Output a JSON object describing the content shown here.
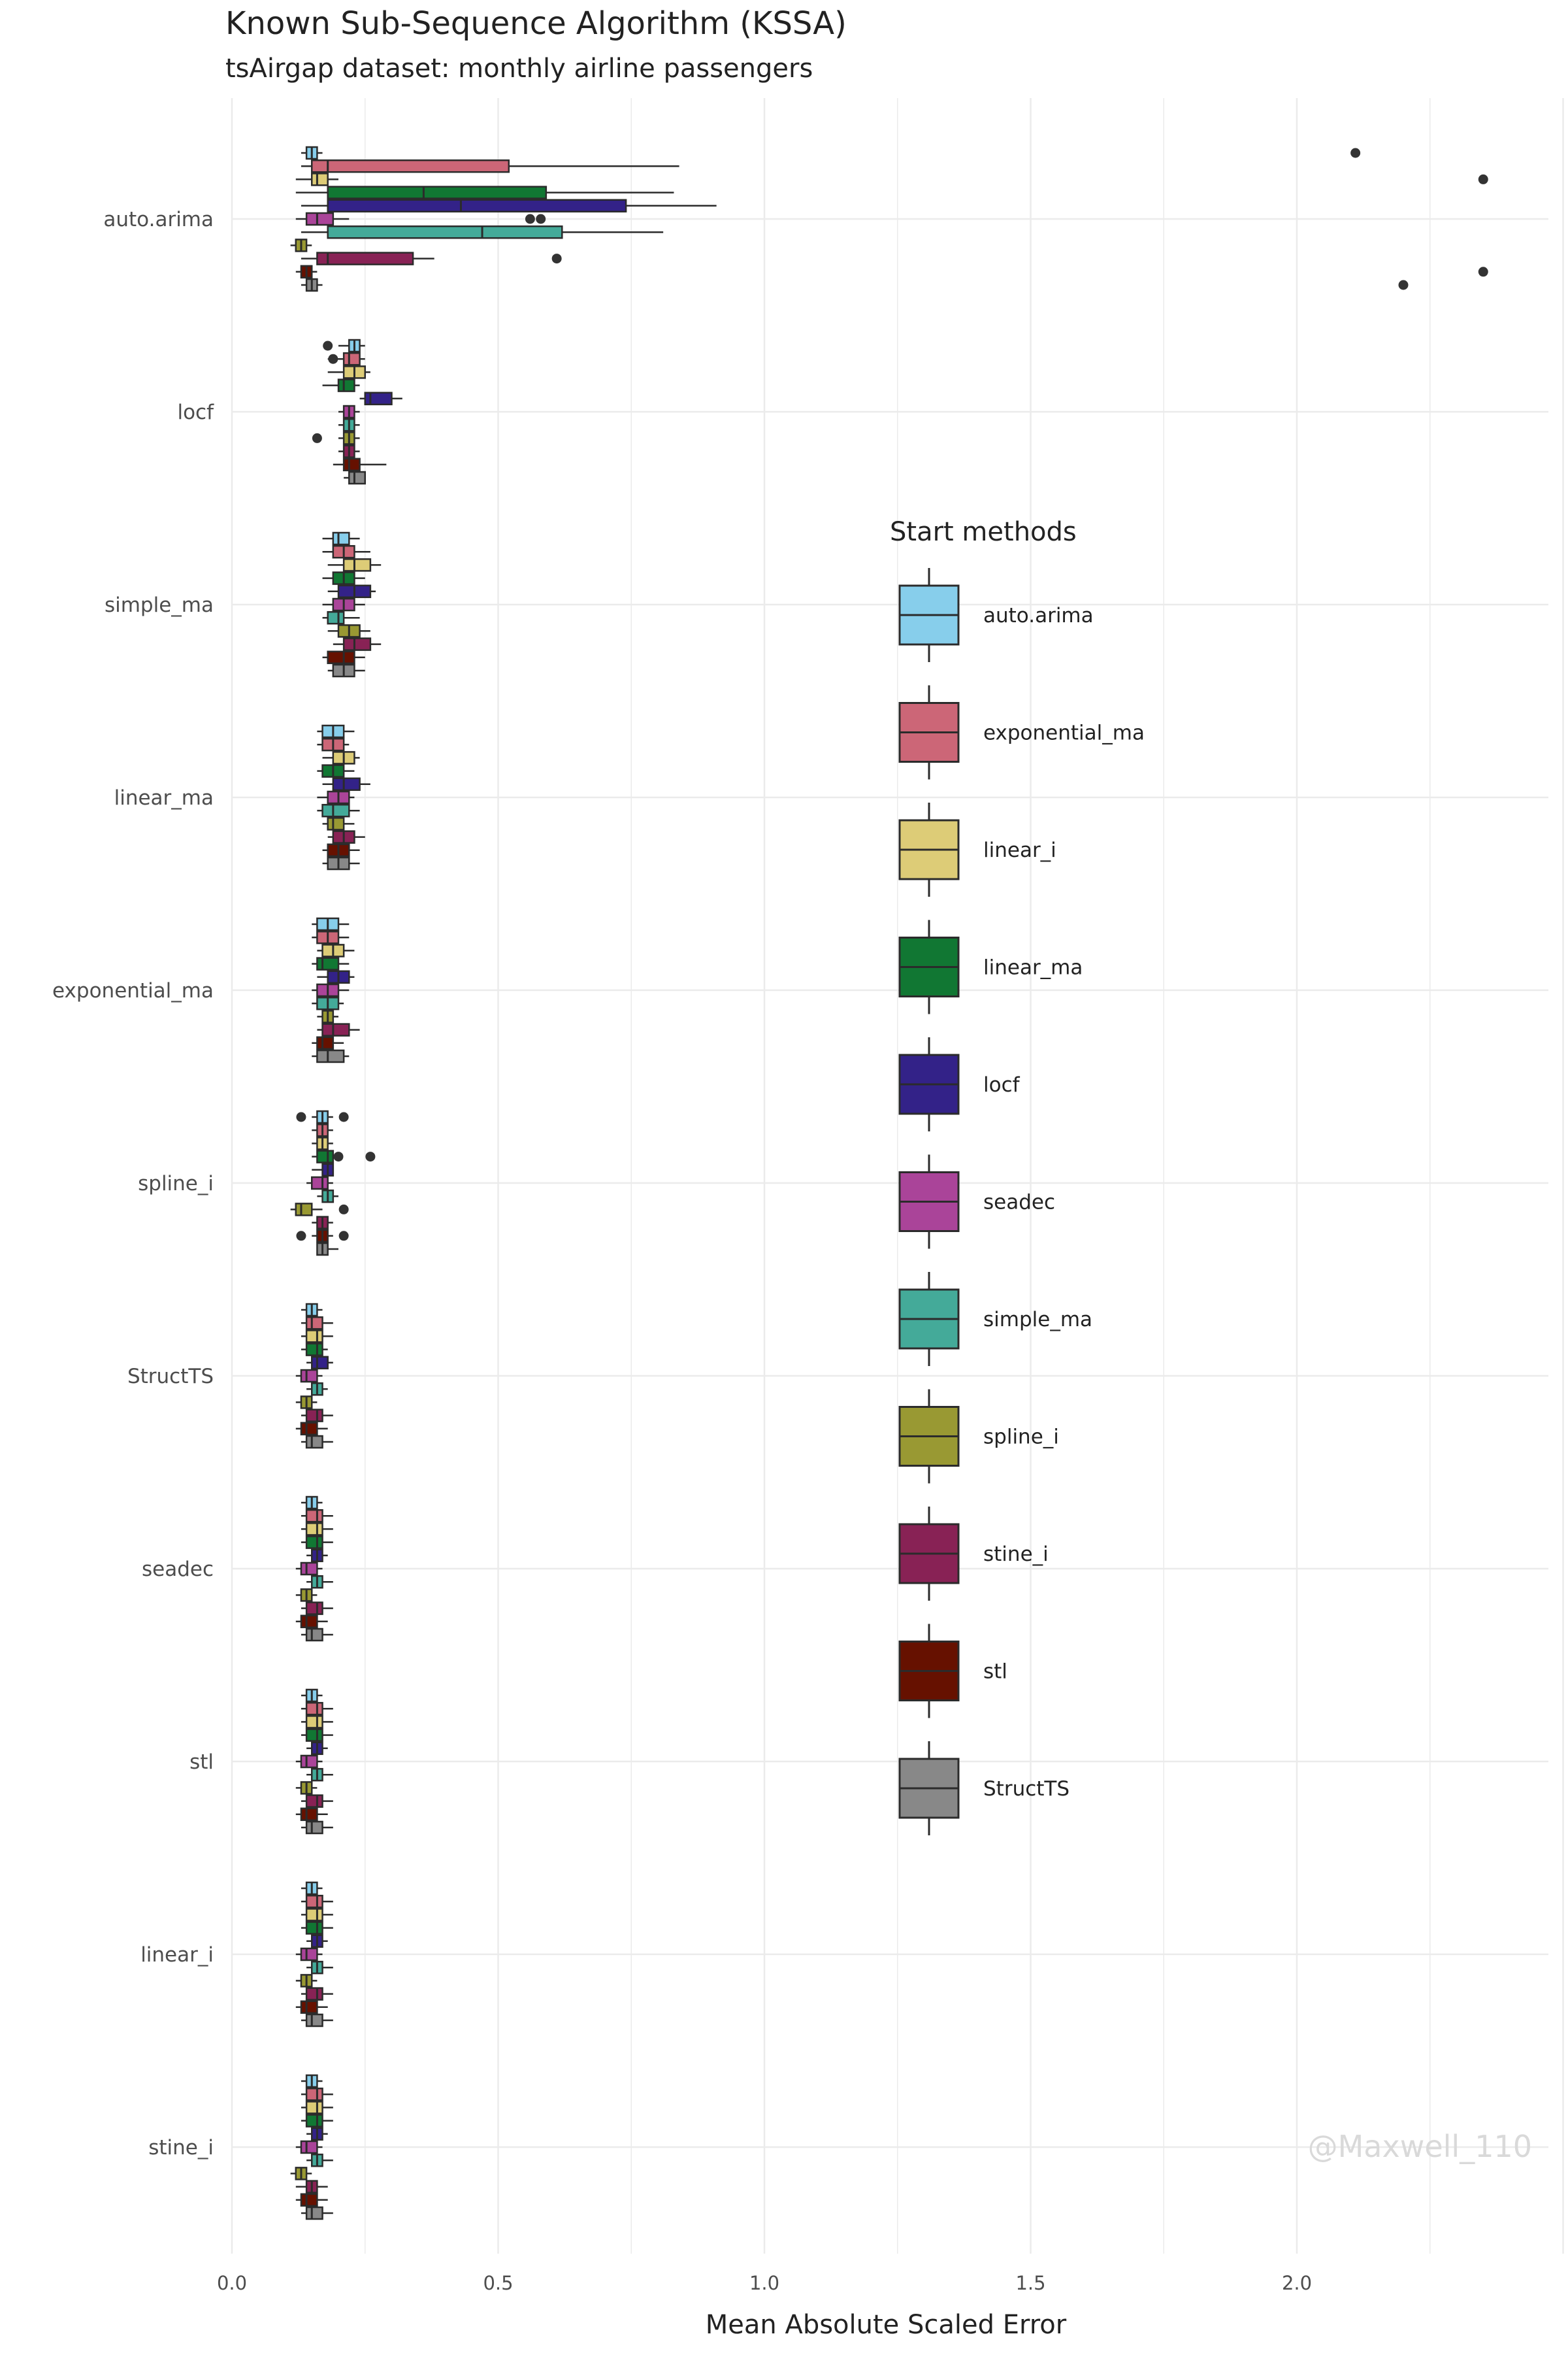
{
  "chart_data": {
    "type": "boxplot",
    "title": "Known Sub-Sequence Algorithm (KSSA)",
    "subtitle": "tsAirgap dataset: monthly airline passengers",
    "xlabel": "Mean Absolute Scaled Error",
    "ylabel": "",
    "xlim": [
      0,
      2.5
    ],
    "x_ticks": [
      "0.0",
      "0.5",
      "1.0",
      "1.5",
      "2.0"
    ],
    "grid": true,
    "legend_title": "Start methods",
    "legend_position": "right",
    "categories": [
      "auto.arima",
      "locf",
      "simple_ma",
      "linear_ma",
      "exponential_ma",
      "spline_i",
      "StructTS",
      "seadec",
      "stl",
      "linear_i",
      "stine_i"
    ],
    "series": [
      {
        "name": "auto.arima",
        "color": "#87CEEB"
      },
      {
        "name": "exponential_ma",
        "color": "#CC6677"
      },
      {
        "name": "linear_i",
        "color": "#DDCC77"
      },
      {
        "name": "linear_ma",
        "color": "#117733"
      },
      {
        "name": "locf",
        "color": "#332288"
      },
      {
        "name": "seadec",
        "color": "#AA4499"
      },
      {
        "name": "simple_ma",
        "color": "#44AA99"
      },
      {
        "name": "spline_i",
        "color": "#999933"
      },
      {
        "name": "stine_i",
        "color": "#882255"
      },
      {
        "name": "stl",
        "color": "#661100"
      },
      {
        "name": "StructTS",
        "color": "#888888"
      }
    ],
    "boxes": {
      "auto.arima": [
        [
          0.13,
          0.14,
          0.15,
          0.16,
          0.17,
          [
            2.11
          ]
        ],
        [
          0.13,
          0.15,
          0.18,
          0.52,
          0.84,
          []
        ],
        [
          0.12,
          0.15,
          0.16,
          0.18,
          0.2,
          [
            2.35
          ]
        ],
        [
          0.12,
          0.18,
          0.36,
          0.59,
          0.83,
          []
        ],
        [
          0.13,
          0.18,
          0.43,
          0.74,
          0.91,
          []
        ],
        [
          0.12,
          0.14,
          0.16,
          0.19,
          0.22,
          [
            0.58,
            0.56
          ]
        ],
        [
          0.13,
          0.18,
          0.47,
          0.62,
          0.81,
          []
        ],
        [
          0.11,
          0.12,
          0.13,
          0.14,
          0.15,
          []
        ],
        [
          0.13,
          0.16,
          0.18,
          0.34,
          0.38,
          [
            0.61
          ]
        ],
        [
          0.12,
          0.13,
          0.14,
          0.15,
          0.16,
          [
            2.35
          ]
        ],
        [
          0.13,
          0.14,
          0.15,
          0.16,
          0.17,
          [
            2.2
          ]
        ]
      ],
      "locf": [
        [
          0.2,
          0.22,
          0.23,
          0.24,
          0.25,
          [
            0.18
          ]
        ],
        [
          0.18,
          0.21,
          0.22,
          0.24,
          0.25,
          [
            0.19
          ]
        ],
        [
          0.18,
          0.21,
          0.23,
          0.25,
          0.26,
          []
        ],
        [
          0.17,
          0.2,
          0.21,
          0.23,
          0.24,
          []
        ],
        [
          0.24,
          0.25,
          0.26,
          0.3,
          0.32,
          []
        ],
        [
          0.2,
          0.21,
          0.22,
          0.23,
          0.24,
          []
        ],
        [
          0.2,
          0.21,
          0.22,
          0.23,
          0.24,
          []
        ],
        [
          0.2,
          0.21,
          0.22,
          0.23,
          0.24,
          [
            0.16
          ]
        ],
        [
          0.2,
          0.21,
          0.22,
          0.23,
          0.24,
          []
        ],
        [
          0.19,
          0.21,
          0.22,
          0.24,
          0.29,
          []
        ],
        [
          0.21,
          0.22,
          0.23,
          0.25,
          0.24,
          []
        ]
      ],
      "simple_ma": [
        [
          0.17,
          0.19,
          0.2,
          0.22,
          0.24,
          []
        ],
        [
          0.17,
          0.19,
          0.21,
          0.23,
          0.26,
          []
        ],
        [
          0.18,
          0.21,
          0.23,
          0.26,
          0.28,
          []
        ],
        [
          0.17,
          0.19,
          0.21,
          0.23,
          0.25,
          []
        ],
        [
          0.18,
          0.2,
          0.23,
          0.26,
          0.27,
          []
        ],
        [
          0.17,
          0.19,
          0.21,
          0.23,
          0.25,
          []
        ],
        [
          0.17,
          0.18,
          0.2,
          0.21,
          0.24,
          []
        ],
        [
          0.18,
          0.2,
          0.22,
          0.24,
          0.26,
          []
        ],
        [
          0.19,
          0.21,
          0.23,
          0.26,
          0.28,
          []
        ],
        [
          0.17,
          0.18,
          0.21,
          0.23,
          0.25,
          []
        ],
        [
          0.18,
          0.19,
          0.21,
          0.23,
          0.25,
          []
        ]
      ],
      "linear_ma": [
        [
          0.16,
          0.17,
          0.19,
          0.21,
          0.23,
          []
        ],
        [
          0.16,
          0.17,
          0.19,
          0.21,
          0.22,
          []
        ],
        [
          0.17,
          0.19,
          0.21,
          0.23,
          0.24,
          []
        ],
        [
          0.16,
          0.17,
          0.19,
          0.21,
          0.23,
          []
        ],
        [
          0.17,
          0.19,
          0.21,
          0.24,
          0.26,
          []
        ],
        [
          0.16,
          0.18,
          0.2,
          0.22,
          0.23,
          []
        ],
        [
          0.16,
          0.17,
          0.19,
          0.22,
          0.24,
          []
        ],
        [
          0.17,
          0.18,
          0.19,
          0.21,
          0.23,
          []
        ],
        [
          0.18,
          0.19,
          0.21,
          0.23,
          0.25,
          []
        ],
        [
          0.17,
          0.18,
          0.2,
          0.22,
          0.24,
          []
        ],
        [
          0.17,
          0.18,
          0.2,
          0.22,
          0.24,
          []
        ]
      ],
      "exponential_ma": [
        [
          0.15,
          0.16,
          0.18,
          0.2,
          0.22,
          []
        ],
        [
          0.15,
          0.16,
          0.18,
          0.2,
          0.22,
          []
        ],
        [
          0.16,
          0.17,
          0.19,
          0.21,
          0.23,
          []
        ],
        [
          0.15,
          0.16,
          0.17,
          0.2,
          0.22,
          []
        ],
        [
          0.16,
          0.18,
          0.2,
          0.22,
          0.23,
          []
        ],
        [
          0.15,
          0.16,
          0.18,
          0.2,
          0.22,
          []
        ],
        [
          0.15,
          0.16,
          0.18,
          0.2,
          0.21,
          []
        ],
        [
          0.16,
          0.17,
          0.18,
          0.19,
          0.2,
          []
        ],
        [
          0.16,
          0.17,
          0.19,
          0.22,
          0.24,
          []
        ],
        [
          0.15,
          0.16,
          0.17,
          0.19,
          0.21,
          []
        ],
        [
          0.15,
          0.16,
          0.18,
          0.21,
          0.22,
          []
        ]
      ],
      "spline_i": [
        [
          0.15,
          0.16,
          0.17,
          0.18,
          0.19,
          [
            0.13,
            0.21
          ]
        ],
        [
          0.15,
          0.16,
          0.17,
          0.18,
          0.19,
          []
        ],
        [
          0.15,
          0.16,
          0.17,
          0.18,
          0.19,
          []
        ],
        [
          0.15,
          0.16,
          0.18,
          0.19,
          0.2,
          [
            0.26,
            0.2
          ]
        ],
        [
          0.15,
          0.17,
          0.18,
          0.19,
          0.19,
          []
        ],
        [
          0.14,
          0.15,
          0.17,
          0.18,
          0.19,
          []
        ],
        [
          0.16,
          0.17,
          0.18,
          0.19,
          0.2,
          []
        ],
        [
          0.11,
          0.12,
          0.13,
          0.15,
          0.17,
          [
            0.21
          ]
        ],
        [
          0.15,
          0.16,
          0.17,
          0.18,
          0.19,
          []
        ],
        [
          0.15,
          0.16,
          0.17,
          0.18,
          0.19,
          [
            0.13,
            0.21
          ]
        ],
        [
          0.16,
          0.16,
          0.17,
          0.18,
          0.2,
          []
        ]
      ],
      "StructTS": [
        [
          0.13,
          0.14,
          0.15,
          0.16,
          0.17,
          []
        ],
        [
          0.13,
          0.14,
          0.15,
          0.17,
          0.19,
          []
        ],
        [
          0.13,
          0.14,
          0.16,
          0.17,
          0.19,
          []
        ],
        [
          0.13,
          0.14,
          0.16,
          0.17,
          0.18,
          []
        ],
        [
          0.14,
          0.15,
          0.16,
          0.18,
          0.19,
          []
        ],
        [
          0.12,
          0.13,
          0.14,
          0.16,
          0.17,
          []
        ],
        [
          0.14,
          0.15,
          0.16,
          0.17,
          0.18,
          []
        ],
        [
          0.12,
          0.13,
          0.14,
          0.15,
          0.16,
          []
        ],
        [
          0.13,
          0.14,
          0.16,
          0.17,
          0.19,
          []
        ],
        [
          0.12,
          0.13,
          0.14,
          0.16,
          0.18,
          []
        ],
        [
          0.13,
          0.14,
          0.15,
          0.17,
          0.19,
          []
        ]
      ],
      "seadec": [
        [
          0.13,
          0.14,
          0.15,
          0.16,
          0.17,
          []
        ],
        [
          0.13,
          0.14,
          0.16,
          0.17,
          0.19,
          []
        ],
        [
          0.13,
          0.14,
          0.16,
          0.17,
          0.19,
          []
        ],
        [
          0.13,
          0.14,
          0.16,
          0.17,
          0.19,
          []
        ],
        [
          0.14,
          0.15,
          0.16,
          0.17,
          0.18,
          []
        ],
        [
          0.12,
          0.13,
          0.14,
          0.16,
          0.17,
          []
        ],
        [
          0.14,
          0.15,
          0.16,
          0.17,
          0.19,
          []
        ],
        [
          0.12,
          0.13,
          0.14,
          0.15,
          0.16,
          []
        ],
        [
          0.13,
          0.14,
          0.16,
          0.17,
          0.19,
          []
        ],
        [
          0.12,
          0.13,
          0.14,
          0.16,
          0.18,
          []
        ],
        [
          0.13,
          0.14,
          0.15,
          0.17,
          0.19,
          []
        ]
      ],
      "stl": [
        [
          0.13,
          0.14,
          0.15,
          0.16,
          0.17,
          []
        ],
        [
          0.13,
          0.14,
          0.16,
          0.17,
          0.19,
          []
        ],
        [
          0.13,
          0.14,
          0.16,
          0.17,
          0.19,
          []
        ],
        [
          0.13,
          0.14,
          0.16,
          0.17,
          0.19,
          []
        ],
        [
          0.14,
          0.15,
          0.16,
          0.17,
          0.18,
          []
        ],
        [
          0.12,
          0.13,
          0.14,
          0.16,
          0.17,
          []
        ],
        [
          0.14,
          0.15,
          0.16,
          0.17,
          0.19,
          []
        ],
        [
          0.12,
          0.13,
          0.14,
          0.15,
          0.16,
          []
        ],
        [
          0.13,
          0.14,
          0.16,
          0.17,
          0.19,
          []
        ],
        [
          0.12,
          0.13,
          0.14,
          0.16,
          0.18,
          []
        ],
        [
          0.13,
          0.14,
          0.15,
          0.17,
          0.19,
          []
        ]
      ],
      "linear_i": [
        [
          0.13,
          0.14,
          0.15,
          0.16,
          0.17,
          []
        ],
        [
          0.13,
          0.14,
          0.16,
          0.17,
          0.19,
          []
        ],
        [
          0.13,
          0.14,
          0.16,
          0.17,
          0.19,
          []
        ],
        [
          0.13,
          0.14,
          0.16,
          0.17,
          0.19,
          []
        ],
        [
          0.14,
          0.15,
          0.16,
          0.17,
          0.18,
          []
        ],
        [
          0.12,
          0.13,
          0.14,
          0.16,
          0.17,
          []
        ],
        [
          0.14,
          0.15,
          0.16,
          0.17,
          0.19,
          []
        ],
        [
          0.12,
          0.13,
          0.14,
          0.15,
          0.16,
          []
        ],
        [
          0.13,
          0.14,
          0.16,
          0.17,
          0.19,
          []
        ],
        [
          0.12,
          0.13,
          0.14,
          0.16,
          0.18,
          []
        ],
        [
          0.13,
          0.14,
          0.15,
          0.17,
          0.19,
          []
        ]
      ],
      "stine_i": [
        [
          0.13,
          0.14,
          0.15,
          0.16,
          0.17,
          []
        ],
        [
          0.13,
          0.14,
          0.16,
          0.17,
          0.19,
          []
        ],
        [
          0.13,
          0.14,
          0.16,
          0.17,
          0.19,
          []
        ],
        [
          0.13,
          0.14,
          0.16,
          0.17,
          0.19,
          []
        ],
        [
          0.14,
          0.15,
          0.16,
          0.17,
          0.18,
          []
        ],
        [
          0.12,
          0.13,
          0.14,
          0.16,
          0.17,
          []
        ],
        [
          0.14,
          0.15,
          0.16,
          0.17,
          0.19,
          []
        ],
        [
          0.11,
          0.12,
          0.13,
          0.14,
          0.15,
          []
        ],
        [
          0.12,
          0.14,
          0.15,
          0.16,
          0.18,
          []
        ],
        [
          0.12,
          0.13,
          0.14,
          0.16,
          0.18,
          []
        ],
        [
          0.13,
          0.14,
          0.15,
          0.17,
          0.19,
          []
        ]
      ]
    },
    "box_fields": [
      "whisker_low",
      "q1",
      "median",
      "q3",
      "whisker_high",
      "outliers"
    ]
  },
  "watermark": "@Maxwell_110"
}
